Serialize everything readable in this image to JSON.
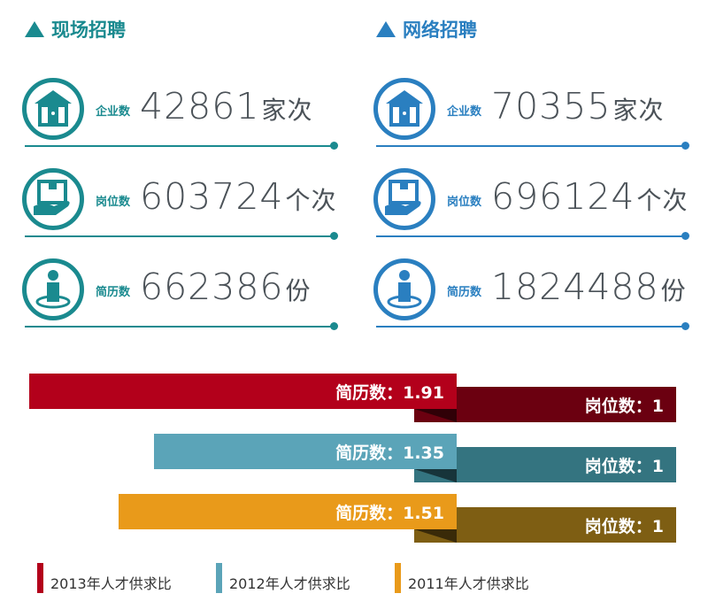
{
  "sections": [
    {
      "title": "现场招聘",
      "color": "#1a8a8f",
      "rows": [
        {
          "icon": "house-icon",
          "label": "企业数",
          "value": "42861",
          "unit": "家次"
        },
        {
          "icon": "hand-box-icon",
          "label": "岗位数",
          "value": "603724",
          "unit": "个次"
        },
        {
          "icon": "person-icon",
          "label": "简历数",
          "value": "662386",
          "unit": "份"
        }
      ]
    },
    {
      "title": "网络招聘",
      "color": "#2a7fc0",
      "rows": [
        {
          "icon": "house-icon",
          "label": "企业数",
          "value": "70355",
          "unit": "家次"
        },
        {
          "icon": "hand-box-icon",
          "label": "岗位数",
          "value": "696124",
          "unit": "个次"
        },
        {
          "icon": "person-icon",
          "label": "简历数",
          "value": "1824488",
          "unit": "份"
        }
      ]
    }
  ],
  "chart_data": {
    "type": "bar",
    "series": [
      {
        "name": "2013年人才供求比",
        "resume_label": "简历数：1.91",
        "resume": 1.91,
        "job_label": "岗位数：1",
        "job": 1,
        "color": "#b3001b",
        "dark": "#6b0010"
      },
      {
        "name": "2012年人才供求比",
        "resume_label": "简历数：1.35",
        "resume": 1.35,
        "job_label": "岗位数：1",
        "job": 1,
        "color": "#5ba4b8",
        "dark": "#347480"
      },
      {
        "name": "2011年人才供求比",
        "resume_label": "简历数：1.51",
        "resume": 1.51,
        "job_label": "岗位数：1",
        "job": 1,
        "color": "#e99a1a",
        "dark": "#7e5e13"
      }
    ]
  }
}
